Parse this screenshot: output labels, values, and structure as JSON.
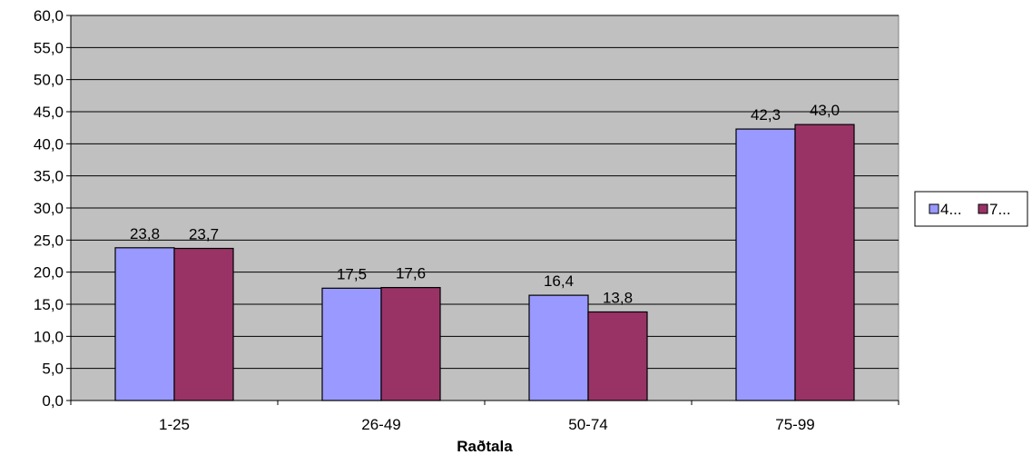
{
  "chart_data": {
    "type": "bar",
    "categories": [
      "1-25",
      "26-49",
      "50-74",
      "75-99"
    ],
    "series": [
      {
        "name": "4...",
        "values": [
          23.8,
          17.5,
          16.4,
          42.3
        ]
      },
      {
        "name": "7...",
        "values": [
          23.7,
          17.6,
          13.8,
          43.0
        ]
      }
    ],
    "data_labels": [
      [
        "23,8",
        "17,5",
        "16,4",
        "42,3"
      ],
      [
        "23,7",
        "17,6",
        "13,8",
        "43,0"
      ]
    ],
    "y_ticks": [
      "0,0",
      "5,0",
      "10,0",
      "15,0",
      "20,0",
      "25,0",
      "30,0",
      "35,0",
      "40,0",
      "45,0",
      "50,0",
      "55,0",
      "60,0"
    ],
    "ylim": [
      0,
      60
    ],
    "xlabel": "Raðtala",
    "ylabel": "",
    "title": "",
    "grid": true,
    "legend_position": "right",
    "colors": {
      "series1": "#9999ff",
      "series2": "#993366",
      "plot_bg": "#c0c0c0"
    }
  }
}
